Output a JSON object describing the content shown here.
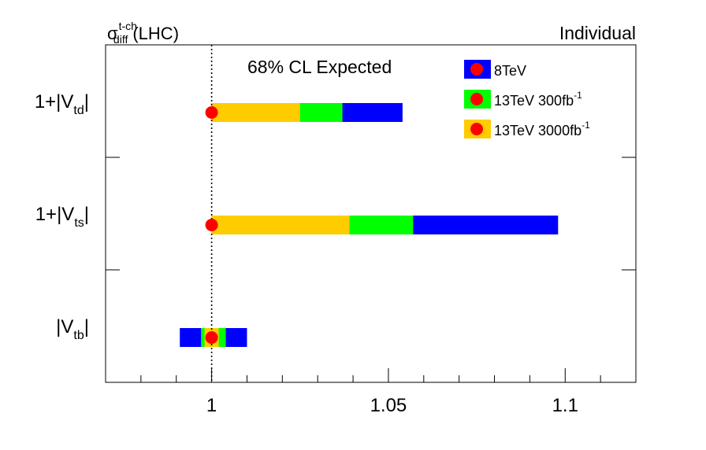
{
  "chart_data": {
    "type": "bar",
    "subtype": "horizontal-interval",
    "title_left": "σ",
    "title_left_sup": "t-ch",
    "title_left_sub": "diff",
    "title_left_suffix": "(LHC)",
    "title_right": "Individual",
    "annotation": "68% CL Expected",
    "xlim": [
      0.97,
      1.12
    ],
    "x_ticks": [
      1,
      1.05,
      1.1
    ],
    "x_tick_labels": [
      "1",
      "1.05",
      "1.1"
    ],
    "reference_line": 1,
    "grid": false,
    "legend_position": "top-right",
    "rows": [
      {
        "label_prefix": "1+|V",
        "label_sub": "td",
        "label_suffix": "|",
        "central": 1.0,
        "intervals": {
          "8TeV": [
            1.0,
            1.054
          ],
          "13TeV 300fb-1": [
            1.0,
            1.037
          ],
          "13TeV 3000fb-1": [
            1.0,
            1.025
          ]
        }
      },
      {
        "label_prefix": "1+|V",
        "label_sub": "ts",
        "label_suffix": "|",
        "central": 1.0,
        "intervals": {
          "8TeV": [
            1.0,
            1.098
          ],
          "13TeV 300fb-1": [
            1.0,
            1.057
          ],
          "13TeV 3000fb-1": [
            1.0,
            1.039
          ]
        }
      },
      {
        "label_prefix": "|V",
        "label_sub": "tb",
        "label_suffix": "|",
        "central": 1.0,
        "intervals": {
          "8TeV": [
            0.991,
            1.01
          ],
          "13TeV 300fb-1": [
            0.997,
            1.004
          ],
          "13TeV 3000fb-1": [
            0.998,
            1.002
          ]
        }
      }
    ],
    "series": [
      {
        "name": "8TeV",
        "name_sup": "",
        "color": "#0000ff"
      },
      {
        "name": "13TeV 300fb",
        "name_sup": "-1",
        "color": "#00ff00"
      },
      {
        "name": "13TeV 3000fb",
        "name_sup": "-1",
        "color": "#ffcc00"
      }
    ],
    "series_keys": [
      "8TeV",
      "13TeV 300fb-1",
      "13TeV 3000fb-1"
    ],
    "marker_color": "#ff0000"
  }
}
